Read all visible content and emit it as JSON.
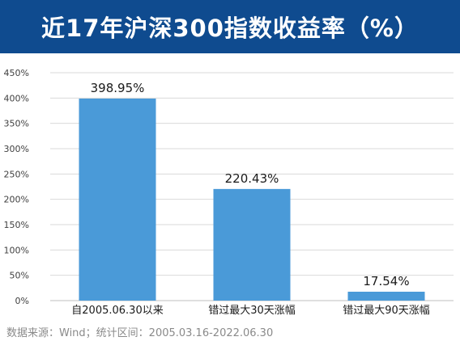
{
  "title": "近17年沪深300指数收益率（%）",
  "source_note": "数据来源：Wind；统计区间：2005.03.16-2022.06.30",
  "colors": {
    "title_bg": "#0f4b8f",
    "bar": "#4a9ad8",
    "grid": "#d9d9d9",
    "axis_text": "#404040"
  },
  "chart_data": {
    "type": "bar",
    "categories": [
      "自2005.06.30以来",
      "错过最大30天涨幅",
      "错过最大90天涨幅"
    ],
    "values": [
      398.95,
      220.43,
      17.54
    ],
    "data_labels": [
      "398.95%",
      "220.43%",
      "17.54%"
    ],
    "y_ticks": [
      "0%",
      "50%",
      "100%",
      "150%",
      "200%",
      "250%",
      "300%",
      "350%",
      "400%",
      "450%"
    ],
    "ylim": [
      0,
      450
    ],
    "grid": true,
    "title": "近17年沪深300指数收益率（%）"
  }
}
